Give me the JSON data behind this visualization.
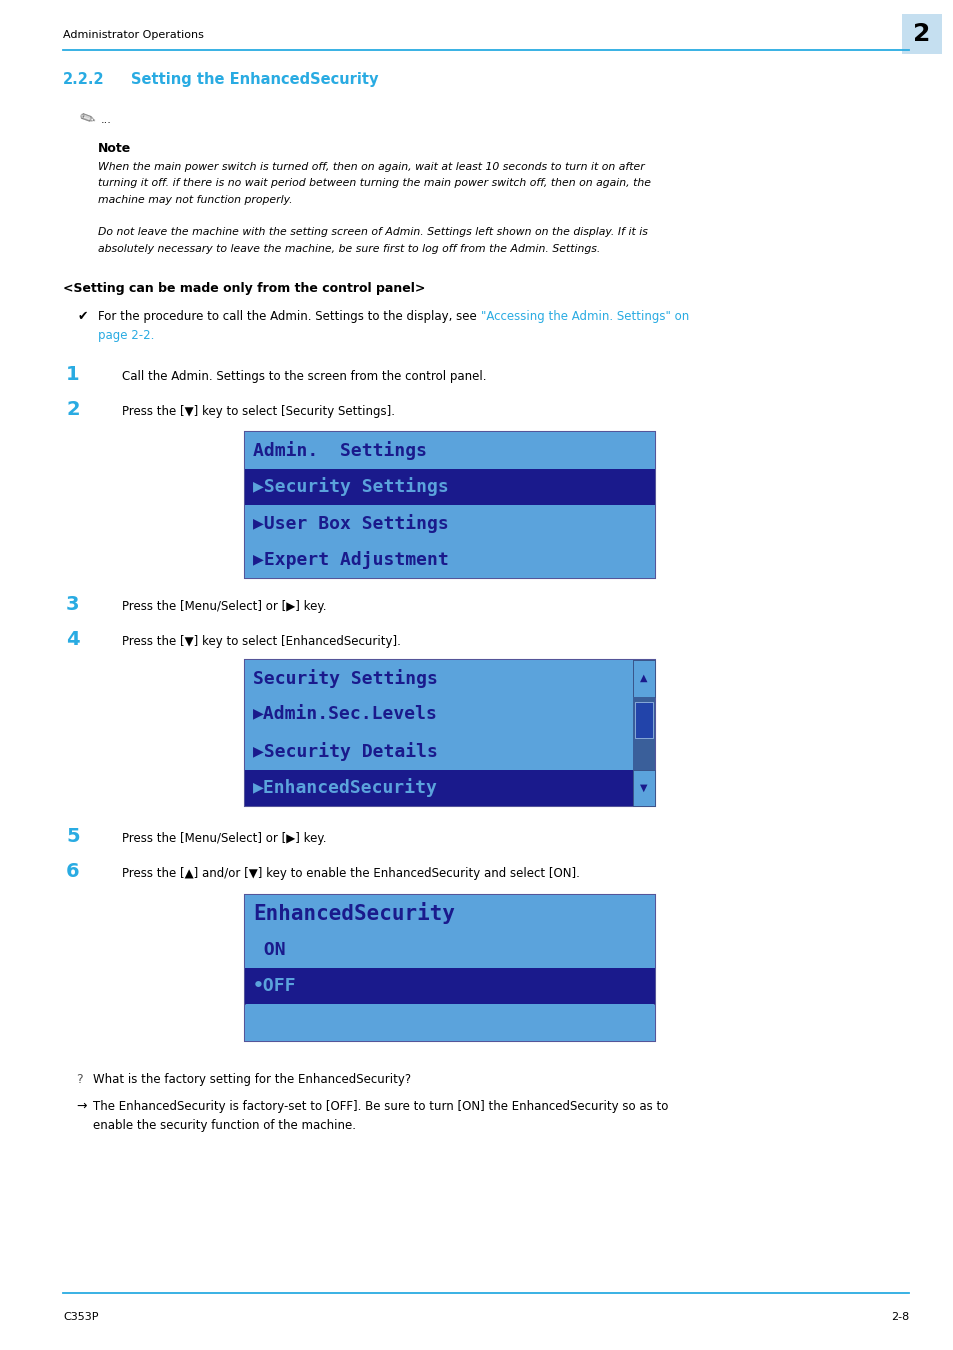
{
  "page_width": 9.54,
  "page_height": 13.5,
  "bg_color": "#ffffff",
  "header_text": "Administrator Operations",
  "header_chapter": "2",
  "header_chapter_bg": "#c5dff0",
  "header_line_color": "#29abe2",
  "footer_left": "C353P",
  "footer_right": "2-8",
  "footer_line_color": "#29abe2",
  "section_num": "2.2.2",
  "section_title": "Setting the EnhancedSecurity",
  "section_title_color": "#29abe2",
  "note_label": "Note",
  "note_text1_lines": [
    "When the main power switch is turned off, then on again, wait at least 10 seconds to turn it on after",
    "turning it off. if there is no wait period between turning the main power switch off, then on again, the",
    "machine may not function properly."
  ],
  "note_text2_lines": [
    "Do not leave the machine with the setting screen of Admin. Settings left shown on the display. If it is",
    "absolutely necessary to leave the machine, be sure first to log off from the Admin. Settings."
  ],
  "setting_header": "<Setting can be made only from the control panel>",
  "check_plain": "For the procedure to call the Admin. Settings to the display, see ",
  "check_link1": "\"Accessing the Admin. Settings\" on",
  "check_link2": "page 2-2.",
  "step1_num": "1",
  "step1_text": "Call the Admin. Settings to the screen from the control panel.",
  "step2_num": "2",
  "step2_text": "Press the [▼] key to select [Security Settings].",
  "screen1_lines": [
    {
      "text": "Admin.  Settings",
      "bg": "#5ba3dc",
      "fg": "#1a1a8c",
      "font_size": 13
    },
    {
      "text": "▶Security Settings",
      "bg": "#1a1a8c",
      "fg": "#5ba3dc",
      "font_size": 13
    },
    {
      "text": "▶User Box Settings",
      "bg": "#5ba3dc",
      "fg": "#1a1a8c",
      "font_size": 13
    },
    {
      "text": "▶Expert Adjustment",
      "bg": "#5ba3dc",
      "fg": "#1a1a8c",
      "font_size": 13
    }
  ],
  "screen1_outer_bg": "#5ba3dc",
  "step3_num": "3",
  "step3_text": "Press the [Menu/Select] or [▶] key.",
  "step4_num": "4",
  "step4_text": "Press the [▼] key to select [EnhancedSecurity].",
  "screen2_lines": [
    {
      "text": "Security Settings",
      "bg": "#5ba3dc",
      "fg": "#1a1a8c",
      "font_size": 13
    },
    {
      "text": "▶Admin.Sec.Levels",
      "bg": "#5ba3dc",
      "fg": "#1a1a8c",
      "font_size": 13
    },
    {
      "text": "▶Security Details",
      "bg": "#5ba3dc",
      "fg": "#1a1a8c",
      "font_size": 13
    },
    {
      "text": "▶EnhancedSecurity",
      "bg": "#1a1a8c",
      "fg": "#5ba3dc",
      "font_size": 13
    }
  ],
  "screen2_outer_bg": "#5ba3dc",
  "screen2_has_scrollbar": true,
  "step5_num": "5",
  "step5_text": "Press the [Menu/Select] or [▶] key.",
  "step6_num": "6",
  "step6_text": "Press the [▲] and/or [▼] key to enable the EnhancedSecurity and select [ON].",
  "screen3_lines": [
    {
      "text": "EnhancedSecurity",
      "bg": "#5ba3dc",
      "fg": "#1a1a8c",
      "font_size": 15
    },
    {
      "text": " ON",
      "bg": "#5ba3dc",
      "fg": "#1a1a8c",
      "font_size": 13
    },
    {
      "text": "•OFF",
      "bg": "#1a1a8c",
      "fg": "#5ba3dc",
      "font_size": 13
    },
    {
      "text": "",
      "bg": "#5ba3dc",
      "fg": "#1a1a8c",
      "font_size": 13
    }
  ],
  "screen3_outer_bg": "#5ba3dc",
  "qa_q": "What is the factory setting for the EnhancedSecurity?",
  "qa_a_lines": [
    "The EnhancedSecurity is factory-set to [OFF]. Be sure to turn [ON] the EnhancedSecurity so as to",
    "enable the security function of the machine."
  ],
  "text_color": "#000000",
  "link_color": "#29abe2",
  "step_color": "#29abe2"
}
